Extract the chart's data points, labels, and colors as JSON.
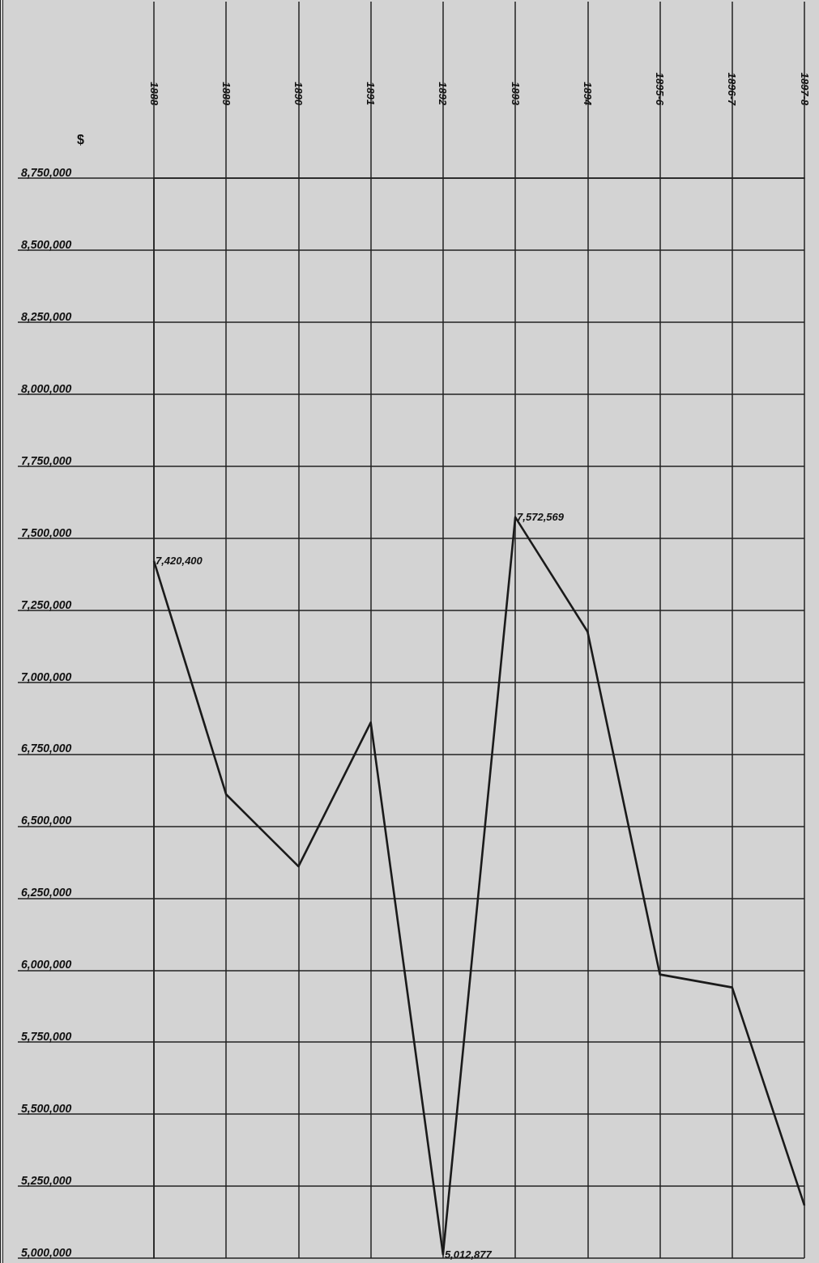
{
  "chart_data": {
    "type": "line",
    "ylabel": "$",
    "categories": [
      "1888",
      "1889",
      "1890",
      "1891",
      "1892",
      "1893",
      "1894",
      "1895-6",
      "1896-7",
      "1897-8"
    ],
    "series": [
      {
        "color": "#1a1a1a",
        "values": [
          7420400,
          6610000,
          6360000,
          6860000,
          5012877,
          7572569,
          7175000,
          5985000,
          5940000,
          5183000
        ],
        "value_labels": [
          "7,420,400",
          null,
          null,
          null,
          "5,012,877",
          "7,572,569",
          null,
          null,
          null,
          null
        ]
      }
    ],
    "ylim": [
      5000000,
      8750000
    ],
    "yticks": [
      {
        "value": 5000000,
        "label": "5,000,000"
      },
      {
        "value": 5250000,
        "label": "5,250,000"
      },
      {
        "value": 5500000,
        "label": "5,500,000"
      },
      {
        "value": 5750000,
        "label": "5,750,000"
      },
      {
        "value": 6000000,
        "label": "6,000,000"
      },
      {
        "value": 6250000,
        "label": "6,250,000"
      },
      {
        "value": 6500000,
        "label": "6,500,000"
      },
      {
        "value": 6750000,
        "label": "6,750,000"
      },
      {
        "value": 7000000,
        "label": "7,000,000"
      },
      {
        "value": 7250000,
        "label": "7,250,000"
      },
      {
        "value": 7500000,
        "label": "7,500,000"
      },
      {
        "value": 7750000,
        "label": "7,750,000"
      },
      {
        "value": 8000000,
        "label": "8,000,000"
      },
      {
        "value": 8250000,
        "label": "8,250,000"
      },
      {
        "value": 8500000,
        "label": "8,500,000"
      },
      {
        "value": 8750000,
        "label": "8,750,000"
      }
    ],
    "grid": true,
    "marker": "none",
    "line_style": "solid"
  }
}
